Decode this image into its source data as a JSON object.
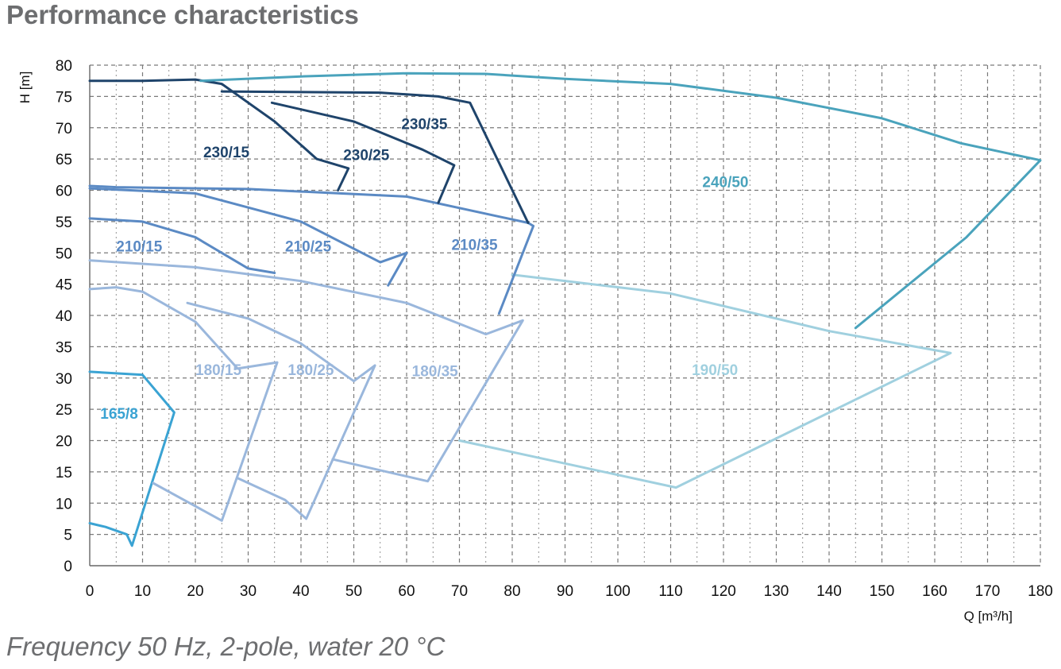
{
  "title": "Performance characteristics",
  "caption": "Frequency 50 Hz, 2-pole, water 20 °C",
  "chart_data": {
    "type": "line",
    "xlabel": "Q [m³/h]",
    "ylabel": "H [m]",
    "xlim": [
      0,
      180
    ],
    "ylim": [
      0,
      80
    ],
    "xticks": [
      0,
      10,
      20,
      30,
      40,
      50,
      60,
      70,
      80,
      90,
      100,
      110,
      120,
      130,
      140,
      150,
      160,
      170,
      180
    ],
    "yticks": [
      0,
      5,
      10,
      15,
      20,
      25,
      30,
      35,
      40,
      45,
      50,
      55,
      60,
      65,
      70,
      75,
      80
    ],
    "grid": true,
    "series": [
      {
        "name": "165/8",
        "color": "#3aa3d3",
        "label_at": [
          2,
          23.5
        ],
        "points": [
          [
            0,
            31
          ],
          [
            10,
            30.5
          ],
          [
            16,
            24.5
          ],
          [
            8,
            3.2
          ],
          [
            7,
            5
          ],
          [
            3,
            6.2
          ],
          [
            0,
            6.8
          ]
        ]
      },
      {
        "name": "180/15",
        "color": "#9ab7dc",
        "label_at": [
          20,
          30.5
        ],
        "points": [
          [
            0,
            44.2
          ],
          [
            5,
            44.5
          ],
          [
            10,
            43.8
          ],
          [
            20,
            39
          ],
          [
            28,
            31.5
          ],
          [
            35.5,
            32.5
          ],
          [
            25,
            7.2
          ],
          [
            12,
            13.2
          ]
        ]
      },
      {
        "name": "180/25",
        "color": "#9ab7dc",
        "label_at": [
          37.5,
          30.5
        ],
        "points": [
          [
            18.5,
            42
          ],
          [
            30,
            39.5
          ],
          [
            40,
            35.5
          ],
          [
            50,
            29.5
          ],
          [
            54,
            32
          ],
          [
            41,
            7.5
          ],
          [
            37,
            10.5
          ],
          [
            28,
            14
          ]
        ]
      },
      {
        "name": "180/35",
        "color": "#9ab7dc",
        "label_at": [
          61,
          30.3
        ],
        "points": [
          [
            0,
            48.8
          ],
          [
            20,
            47.7
          ],
          [
            40,
            45.5
          ],
          [
            60,
            42
          ],
          [
            75,
            37
          ],
          [
            82,
            39.2
          ],
          [
            64,
            13.5
          ],
          [
            46,
            17
          ]
        ]
      },
      {
        "name": "190/50",
        "color": "#a0d0df",
        "label_at": [
          114,
          30.5
        ],
        "points": [
          [
            80,
            46.5
          ],
          [
            110,
            43.5
          ],
          [
            140,
            37.5
          ],
          [
            163,
            34
          ],
          [
            111,
            12.5
          ],
          [
            70,
            20
          ]
        ]
      },
      {
        "name": "210/15",
        "color": "#5b8ac4",
        "label_at": [
          5,
          50.2
        ],
        "points": [
          [
            0,
            55.5
          ],
          [
            10,
            55
          ],
          [
            20,
            52.5
          ],
          [
            30,
            47.5
          ],
          [
            35,
            46.8
          ]
        ]
      },
      {
        "name": "210/25",
        "color": "#5b8ac4",
        "label_at": [
          37,
          50.2
        ],
        "points": [
          [
            0,
            60.3
          ],
          [
            20,
            59.5
          ],
          [
            40,
            55
          ],
          [
            55,
            48.5
          ],
          [
            60,
            50
          ],
          [
            56.5,
            44.8
          ]
        ]
      },
      {
        "name": "210/35",
        "color": "#5b8ac4",
        "label_at": [
          68.5,
          50.5
        ],
        "points": [
          [
            0,
            60.7
          ],
          [
            5,
            60.5
          ],
          [
            30,
            60.2
          ],
          [
            60,
            59
          ],
          [
            83,
            54.8
          ],
          [
            84,
            54.3
          ],
          [
            77.5,
            40.3
          ]
        ]
      },
      {
        "name": "230/15",
        "color": "#1f446b",
        "label_at": [
          21.5,
          65.3
        ],
        "points": [
          [
            0,
            77.5
          ],
          [
            10,
            77.5
          ],
          [
            20,
            77.7
          ],
          [
            25,
            77
          ],
          [
            35,
            71
          ],
          [
            43,
            65
          ],
          [
            49,
            63.5
          ],
          [
            47,
            60
          ]
        ]
      },
      {
        "name": "230/25",
        "color": "#1f446b",
        "label_at": [
          48,
          64.8
        ],
        "points": [
          [
            34.5,
            74
          ],
          [
            50,
            71
          ],
          [
            63,
            66.5
          ],
          [
            69,
            64
          ],
          [
            66,
            58
          ]
        ]
      },
      {
        "name": "230/35",
        "color": "#1f446b",
        "label_at": [
          59,
          69.8
        ],
        "points": [
          [
            25,
            75.8
          ],
          [
            55,
            75.6
          ],
          [
            66,
            75
          ],
          [
            72,
            74
          ],
          [
            83,
            54.8
          ]
        ]
      },
      {
        "name": "240/50",
        "color": "#4aa3bc",
        "label_at": [
          116,
          60.5
        ],
        "points": [
          [
            21,
            77.5
          ],
          [
            40,
            78.2
          ],
          [
            60,
            78.7
          ],
          [
            75,
            78.6
          ],
          [
            90,
            77.8
          ],
          [
            110,
            77
          ],
          [
            130,
            74.8
          ],
          [
            150,
            71.5
          ],
          [
            165,
            67.5
          ],
          [
            180,
            64.8
          ],
          [
            166,
            52.5
          ],
          [
            145,
            38
          ]
        ]
      }
    ]
  }
}
